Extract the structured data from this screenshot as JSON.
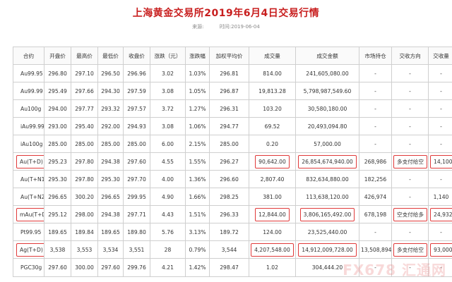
{
  "title": "上海黄金交易所2019年6月4日交易行情",
  "meta": {
    "source_label": "来源:",
    "time_label": "时间:2019-06-04"
  },
  "table": {
    "headers": [
      "合约",
      "开盘价",
      "最高价",
      "最低价",
      "收盘价",
      "涨跌（元）",
      "涨跌幅",
      "加权平均价",
      "成交量",
      "成交金额",
      "市场持仓",
      "交收方向",
      "交收量"
    ],
    "rows": [
      [
        "Au99.95",
        "296.80",
        "297.10",
        "296.50",
        "296.96",
        "3.02",
        "1.03%",
        "296.81",
        "814.00",
        "241,605,080.00",
        "-",
        "-",
        "-"
      ],
      [
        "Au99.99",
        "295.49",
        "297.66",
        "294.30",
        "297.59",
        "3.08",
        "1.05%",
        "296.87",
        "19,813.28",
        "5,798,987,549.60",
        "-",
        "-",
        "-"
      ],
      [
        "Au100g",
        "294.00",
        "297.77",
        "293.32",
        "297.57",
        "3.72",
        "1.27%",
        "296.31",
        "103.20",
        "30,580,180.00",
        "-",
        "-",
        "-"
      ],
      [
        "iAu99.99",
        "293.00",
        "295.40",
        "292.00",
        "294.93",
        "3.08",
        "1.06%",
        "294.77",
        "69.52",
        "20,493,094.80",
        "-",
        "-",
        "-"
      ],
      [
        "iAu100g",
        "285.00",
        "285.00",
        "285.00",
        "285.00",
        "6.00",
        "2.15%",
        "285.00",
        "0.20",
        "57,000.00",
        "-",
        "-",
        "-"
      ],
      [
        "Au(T+D)",
        "295.23",
        "297.80",
        "294.38",
        "297.60",
        "4.55",
        "1.55%",
        "296.27",
        "90,642.00",
        "26,854,674,940.00",
        "268,986",
        "多支付给空",
        "14,100"
      ],
      [
        "Au(T+N1)",
        "295.30",
        "297.80",
        "295.30",
        "297.70",
        "4.00",
        "1.36%",
        "296.60",
        "2,807.40",
        "832,634,880.00",
        "182,256",
        "-",
        "-"
      ],
      [
        "Au(T+N2)",
        "296.65",
        "300.20",
        "296.65",
        "299.95",
        "4.90",
        "1.66%",
        "298.25",
        "381.00",
        "113,638,120.00",
        "426,974",
        "-",
        "1,140"
      ],
      [
        "mAu(T+D)",
        "295.12",
        "298.00",
        "294.38",
        "297.71",
        "4.43",
        "1.51%",
        "296.33",
        "12,844.00",
        "3,806,165,492.00",
        "678,198",
        "空支付给多",
        "24,932"
      ],
      [
        "Pt99.95",
        "189.65",
        "189.84",
        "189.65",
        "189.80",
        "5.76",
        "3.13%",
        "189.72",
        "124.00",
        "23,525,440.00",
        "-",
        "-",
        "-"
      ],
      [
        "Ag(T+D)",
        "3,538",
        "3,553",
        "3,534",
        "3,551",
        "28",
        "0.79%",
        "3,544",
        "4,207,548.00",
        "14,912,009,728.00",
        "13,508,894",
        "多支付给空",
        "93,000"
      ],
      [
        "PGC30g",
        "297.60",
        "300.00",
        "297.60",
        "299.76",
        "4.21",
        "1.42%",
        "298.47",
        "1.02",
        "304,444.20",
        "-",
        "-",
        "-"
      ]
    ]
  },
  "highlights": [
    [
      5,
      0
    ],
    [
      5,
      8
    ],
    [
      5,
      9
    ],
    [
      5,
      11
    ],
    [
      5,
      12
    ],
    [
      8,
      0
    ],
    [
      8,
      8
    ],
    [
      8,
      9
    ],
    [
      8,
      11
    ],
    [
      8,
      12
    ],
    [
      10,
      0
    ],
    [
      10,
      8
    ],
    [
      10,
      9
    ],
    [
      10,
      11
    ],
    [
      10,
      12
    ]
  ],
  "watermark": "FX678 汇通网",
  "colors": {
    "title": "#c81e1e",
    "highlight_border": "#e03a3a",
    "grid": "#cfcfcf"
  }
}
